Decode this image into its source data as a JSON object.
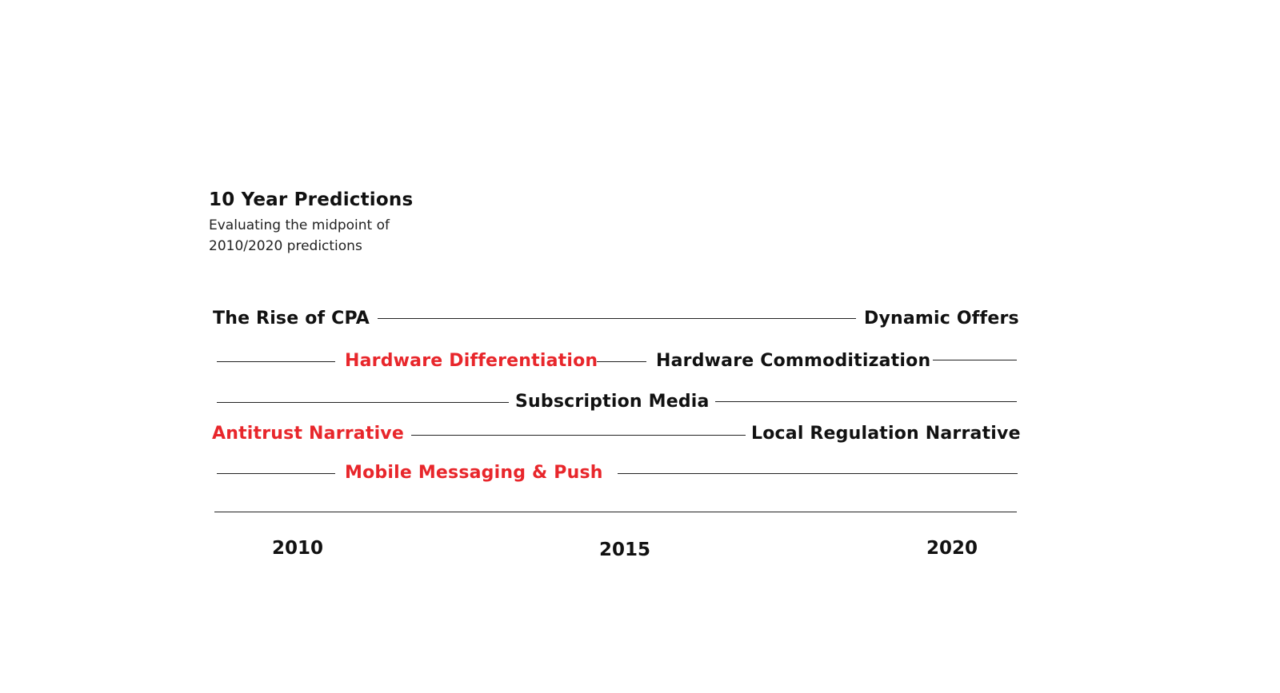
{
  "header": {
    "title": "10 Year Predictions",
    "subtitle_line1": "Evaluating the midpoint of",
    "subtitle_line2": "2010/2020 predictions"
  },
  "colors": {
    "text": "#111111",
    "highlight": "#e8262b",
    "rule": "#222222"
  },
  "rows": [
    {
      "predictions": [
        {
          "label": "The Rise of CPA",
          "status": "confirmed"
        },
        {
          "label": "Dynamic Offers",
          "status": "confirmed"
        }
      ]
    },
    {
      "predictions": [
        {
          "label": "Hardware Differentiation",
          "status": "highlighted"
        },
        {
          "label": "Hardware Commoditization",
          "status": "confirmed"
        }
      ]
    },
    {
      "predictions": [
        {
          "label": "Subscription Media",
          "status": "confirmed"
        }
      ]
    },
    {
      "predictions": [
        {
          "label": "Antitrust Narrative",
          "status": "highlighted"
        },
        {
          "label": "Local Regulation Narrative",
          "status": "confirmed"
        }
      ]
    },
    {
      "predictions": [
        {
          "label": "Mobile Messaging & Push",
          "status": "highlighted"
        }
      ]
    }
  ],
  "axis": {
    "years": [
      "2010",
      "2015",
      "2020"
    ]
  }
}
